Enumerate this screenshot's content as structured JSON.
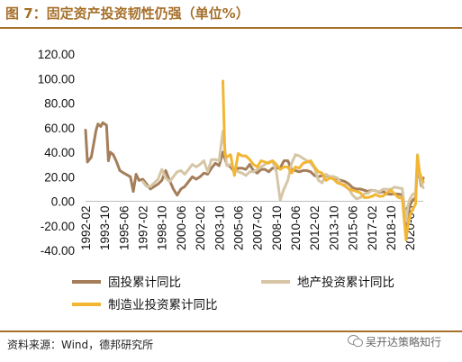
{
  "title": "图 7：固定资产投资韧性仍强（单位%）",
  "source": "资料来源：Wind，德邦研究所",
  "watermark": "吴开达策略知行",
  "colors": {
    "series1": "#a47e5a",
    "series2": "#d6c6a6",
    "series3": "#f2b632",
    "accent": "#a66f2a"
  },
  "chart_data": {
    "type": "line",
    "ylim": [
      -40,
      120
    ],
    "yticks": [
      "120.00",
      "100.00",
      "80.00",
      "60.00",
      "40.00",
      "20.00",
      "0.00",
      "-20.00",
      "-40.00"
    ],
    "xticks": [
      "1992-02",
      "1993-10",
      "1995-06",
      "1997-02",
      "1998-10",
      "2000-06",
      "2002-02",
      "2003-10",
      "2005-06",
      "2007-02",
      "2008-10",
      "2010-06",
      "2012-02",
      "2013-10",
      "2015-06",
      "2017-02",
      "2018-10",
      "2020-06"
    ],
    "legend_position": "bottom",
    "series": [
      {
        "name": "固投累计同比",
        "points": [
          [
            "1992-02",
            58
          ],
          [
            "1992-04",
            32
          ],
          [
            "1992-08",
            36
          ],
          [
            "1993-01",
            58
          ],
          [
            "1993-03",
            63
          ],
          [
            "1993-06",
            61
          ],
          [
            "1993-08",
            64
          ],
          [
            "1993-10",
            63
          ],
          [
            "1993-12",
            62
          ],
          [
            "1994-02",
            33
          ],
          [
            "1994-04",
            40
          ],
          [
            "1994-07",
            38
          ],
          [
            "1994-10",
            33
          ],
          [
            "1995-02",
            25
          ],
          [
            "1995-06",
            23
          ],
          [
            "1996-01",
            20
          ],
          [
            "1996-04",
            8
          ],
          [
            "1996-07",
            22
          ],
          [
            "1996-10",
            17
          ],
          [
            "1997-02",
            18
          ],
          [
            "1997-06",
            14
          ],
          [
            "1997-10",
            10
          ],
          [
            "1998-02",
            12
          ],
          [
            "1998-06",
            14
          ],
          [
            "1998-10",
            17
          ],
          [
            "1999-02",
            25
          ],
          [
            "1999-06",
            17
          ],
          [
            "1999-10",
            10
          ],
          [
            "2000-02",
            5
          ],
          [
            "2000-06",
            10
          ],
          [
            "2000-10",
            12
          ],
          [
            "2001-02",
            16
          ],
          [
            "2001-06",
            20
          ],
          [
            "2001-10",
            18
          ],
          [
            "2002-02",
            20
          ],
          [
            "2002-06",
            23
          ],
          [
            "2002-10",
            22
          ],
          [
            "2003-02",
            27
          ],
          [
            "2003-06",
            31
          ],
          [
            "2003-10",
            29
          ],
          [
            "2004-02",
            40
          ],
          [
            "2004-06",
            30
          ],
          [
            "2004-10",
            28
          ],
          [
            "2005-02",
            24
          ],
          [
            "2005-06",
            27
          ],
          [
            "2005-10",
            27
          ],
          [
            "2006-02",
            26
          ],
          [
            "2006-06",
            30
          ],
          [
            "2006-10",
            25
          ],
          [
            "2007-02",
            23
          ],
          [
            "2007-06",
            26
          ],
          [
            "2007-10",
            26
          ],
          [
            "2008-02",
            24
          ],
          [
            "2008-06",
            27
          ],
          [
            "2008-10",
            27
          ],
          [
            "2009-02",
            27
          ],
          [
            "2009-06",
            33
          ],
          [
            "2009-10",
            33
          ],
          [
            "2010-02",
            26
          ],
          [
            "2010-06",
            25
          ],
          [
            "2010-10",
            24
          ],
          [
            "2011-02",
            25
          ],
          [
            "2011-06",
            25
          ],
          [
            "2011-10",
            24
          ],
          [
            "2012-02",
            21
          ],
          [
            "2012-06",
            20
          ],
          [
            "2012-10",
            21
          ],
          [
            "2013-02",
            21
          ],
          [
            "2013-06",
            20
          ],
          [
            "2013-10",
            20
          ],
          [
            "2014-02",
            18
          ],
          [
            "2014-06",
            17
          ],
          [
            "2014-10",
            16
          ],
          [
            "2015-02",
            14
          ],
          [
            "2015-06",
            11
          ],
          [
            "2015-10",
            10
          ],
          [
            "2016-02",
            10
          ],
          [
            "2016-06",
            9
          ],
          [
            "2016-10",
            8
          ],
          [
            "2017-02",
            9
          ],
          [
            "2017-06",
            8.6
          ],
          [
            "2017-10",
            7.3
          ],
          [
            "2018-02",
            7.9
          ],
          [
            "2018-06",
            6
          ],
          [
            "2018-10",
            5.7
          ],
          [
            "2019-02",
            6.1
          ],
          [
            "2019-06",
            5.8
          ],
          [
            "2019-10",
            5.2
          ],
          [
            "2020-02",
            -24.5
          ],
          [
            "2020-04",
            -10.3
          ],
          [
            "2020-06",
            -3.1
          ],
          [
            "2020-09",
            0.8
          ],
          [
            "2020-12",
            2.9
          ],
          [
            "2021-02",
            35
          ],
          [
            "2021-04",
            19.9
          ],
          [
            "2021-06",
            12.6
          ],
          [
            "2021-08",
            19
          ]
        ]
      },
      {
        "name": "地产投资累计同比",
        "points": [
          [
            "1997-02",
            16
          ],
          [
            "1997-06",
            12
          ],
          [
            "1997-10",
            12
          ],
          [
            "1998-02",
            15
          ],
          [
            "1998-06",
            18
          ],
          [
            "1998-10",
            26
          ],
          [
            "1999-02",
            19
          ],
          [
            "1999-06",
            16
          ],
          [
            "1999-10",
            20
          ],
          [
            "2000-02",
            24
          ],
          [
            "2000-06",
            25
          ],
          [
            "2000-10",
            22
          ],
          [
            "2001-02",
            26
          ],
          [
            "2001-06",
            30
          ],
          [
            "2001-10",
            28
          ],
          [
            "2002-02",
            30
          ],
          [
            "2002-06",
            33
          ],
          [
            "2002-10",
            24
          ],
          [
            "2003-02",
            34
          ],
          [
            "2003-06",
            34
          ],
          [
            "2003-10",
            33
          ],
          [
            "2004-02",
            57
          ],
          [
            "2004-06",
            29
          ],
          [
            "2004-10",
            30
          ],
          [
            "2005-02",
            26
          ],
          [
            "2005-06",
            24
          ],
          [
            "2005-10",
            23
          ],
          [
            "2006-02",
            21
          ],
          [
            "2006-06",
            24
          ],
          [
            "2006-10",
            24
          ],
          [
            "2007-02",
            26
          ],
          [
            "2007-06",
            28
          ],
          [
            "2007-10",
            30
          ],
          [
            "2008-02",
            32
          ],
          [
            "2008-06",
            33
          ],
          [
            "2008-10",
            24
          ],
          [
            "2009-02",
            1
          ],
          [
            "2009-06",
            10
          ],
          [
            "2009-10",
            17
          ],
          [
            "2010-02",
            31
          ],
          [
            "2010-06",
            38
          ],
          [
            "2010-10",
            37
          ],
          [
            "2011-02",
            35
          ],
          [
            "2011-06",
            33
          ],
          [
            "2011-10",
            31
          ],
          [
            "2012-02",
            27
          ],
          [
            "2012-06",
            17
          ],
          [
            "2012-10",
            15
          ],
          [
            "2013-02",
            22
          ],
          [
            "2013-06",
            20
          ],
          [
            "2013-10",
            20
          ],
          [
            "2014-02",
            19
          ],
          [
            "2014-06",
            14
          ],
          [
            "2014-10",
            12
          ],
          [
            "2015-02",
            10
          ],
          [
            "2015-06",
            5
          ],
          [
            "2015-10",
            2
          ],
          [
            "2016-02",
            3
          ],
          [
            "2016-06",
            6
          ],
          [
            "2016-10",
            6.6
          ],
          [
            "2017-02",
            8.9
          ],
          [
            "2017-06",
            8.5
          ],
          [
            "2017-10",
            7.8
          ],
          [
            "2018-02",
            9.9
          ],
          [
            "2018-06",
            9.7
          ],
          [
            "2018-10",
            9.7
          ],
          [
            "2019-02",
            11.6
          ],
          [
            "2019-06",
            10.9
          ],
          [
            "2019-10",
            10.3
          ],
          [
            "2020-02",
            -16.3
          ],
          [
            "2020-04",
            -3.3
          ],
          [
            "2020-06",
            1.9
          ],
          [
            "2020-09",
            5.6
          ],
          [
            "2020-12",
            7
          ],
          [
            "2021-02",
            38
          ],
          [
            "2021-04",
            21.6
          ],
          [
            "2021-06",
            15
          ],
          [
            "2021-08",
            10.9
          ]
        ]
      },
      {
        "name": "制造业投资累计同比",
        "points": [
          [
            "2004-02",
            98
          ],
          [
            "2004-04",
            38
          ],
          [
            "2004-06",
            36
          ],
          [
            "2004-10",
            38
          ],
          [
            "2005-02",
            21
          ],
          [
            "2005-06",
            39
          ],
          [
            "2005-10",
            37
          ],
          [
            "2006-02",
            37
          ],
          [
            "2006-06",
            34
          ],
          [
            "2006-10",
            30
          ],
          [
            "2007-02",
            28
          ],
          [
            "2007-06",
            33
          ],
          [
            "2007-10",
            32
          ],
          [
            "2008-02",
            31
          ],
          [
            "2008-06",
            33
          ],
          [
            "2008-10",
            30
          ],
          [
            "2009-02",
            26
          ],
          [
            "2009-06",
            28
          ],
          [
            "2009-10",
            28
          ],
          [
            "2010-02",
            23
          ],
          [
            "2010-06",
            28
          ],
          [
            "2010-10",
            27
          ],
          [
            "2011-02",
            31
          ],
          [
            "2011-06",
            32
          ],
          [
            "2011-10",
            33
          ],
          [
            "2012-02",
            28
          ],
          [
            "2012-06",
            24
          ],
          [
            "2012-10",
            23
          ],
          [
            "2013-02",
            17
          ],
          [
            "2013-06",
            19
          ],
          [
            "2013-10",
            18
          ],
          [
            "2014-02",
            15
          ],
          [
            "2014-06",
            14
          ],
          [
            "2014-10",
            13
          ],
          [
            "2015-02",
            10
          ],
          [
            "2015-06",
            9
          ],
          [
            "2015-10",
            8
          ],
          [
            "2016-02",
            7
          ],
          [
            "2016-06",
            3
          ],
          [
            "2016-10",
            3
          ],
          [
            "2017-02",
            4
          ],
          [
            "2017-06",
            5.5
          ],
          [
            "2017-10",
            4
          ],
          [
            "2018-02",
            4.3
          ],
          [
            "2018-06",
            6.8
          ],
          [
            "2018-10",
            9.1
          ],
          [
            "2019-02",
            5.9
          ],
          [
            "2019-06",
            3
          ],
          [
            "2019-10",
            2.6
          ],
          [
            "2020-02",
            -31.5
          ],
          [
            "2020-04",
            -18.8
          ],
          [
            "2020-06",
            -11.7
          ],
          [
            "2020-09",
            -6.5
          ],
          [
            "2020-12",
            -2.2
          ],
          [
            "2021-02",
            37.3
          ],
          [
            "2021-04",
            23.8
          ],
          [
            "2021-06",
            19.2
          ],
          [
            "2021-08",
            15.7
          ]
        ]
      }
    ]
  }
}
